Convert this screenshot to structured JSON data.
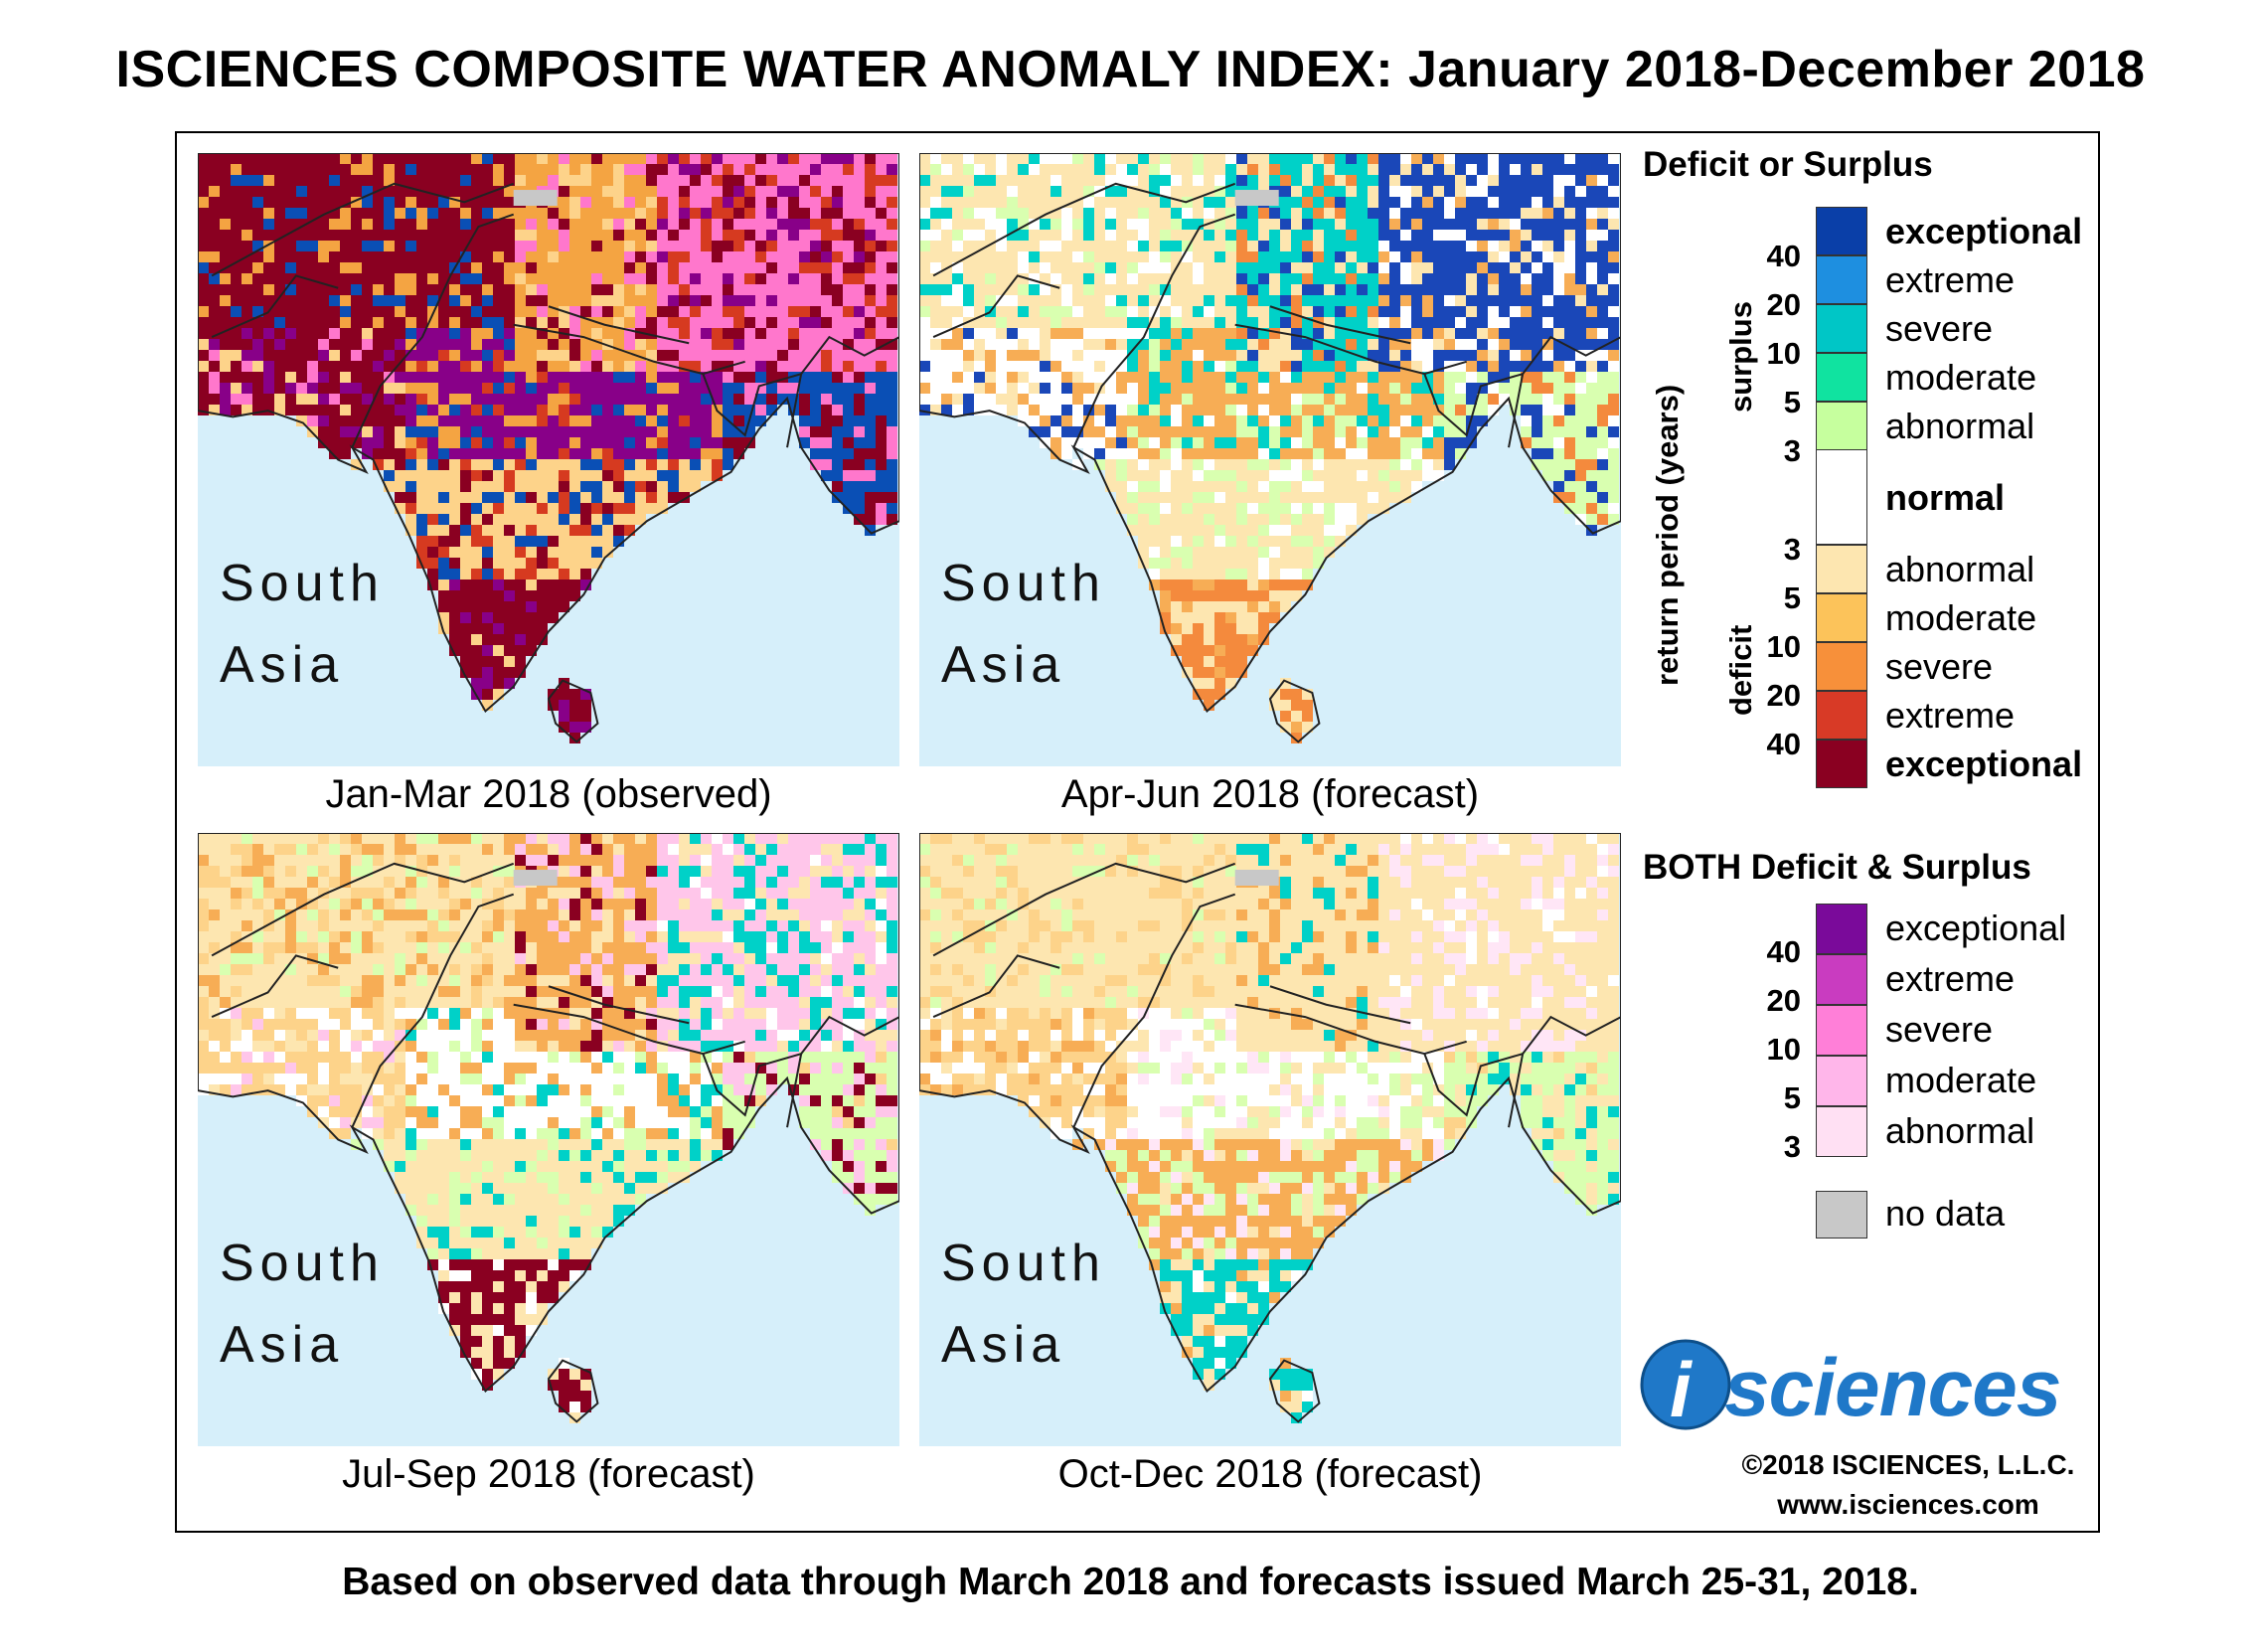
{
  "title": "ISCIENCES COMPOSITE WATER ANOMALY INDEX: January 2018-December 2018",
  "footer": "Based on observed data through March 2018 and forecasts issued March 25-31, 2018.",
  "colors": {
    "water": "#d6effa",
    "border": "#222222",
    "nodata": "#c8c8c8"
  },
  "panels": [
    {
      "region_line1": "South",
      "region_line2": "Asia",
      "caption": "Jan-Mar 2018 (observed)",
      "palette": [
        "#8a0021",
        "#8a0021",
        "#880088",
        "#f4a442",
        "#fdd38a",
        "#0a4fb5",
        "#ff77cc",
        "#d63a20",
        "#8a0021"
      ]
    },
    {
      "region_line1": "South",
      "region_line2": "Asia",
      "caption": "Apr-Jun 2018 (forecast)",
      "palette": [
        "#fde6b0",
        "#ffffff",
        "#f7ad55",
        "#00d1c8",
        "#fde6b0",
        "#d9ffb0",
        "#1a47b8",
        "#ffffff",
        "#f48a3d"
      ]
    },
    {
      "region_line1": "South",
      "region_line2": "Asia",
      "caption": "Jul-Sep 2018 (forecast)",
      "palette": [
        "#fde6b0",
        "#fdd38a",
        "#ffffff",
        "#f7ad55",
        "#fde6b0",
        "#d9ffb0",
        "#ffc6ea",
        "#00d1c8",
        "#8a0021"
      ]
    },
    {
      "region_line1": "South",
      "region_line2": "Asia",
      "caption": "Oct-Dec 2018 (forecast)",
      "palette": [
        "#fde6b0",
        "#fdd38a",
        "#ffffff",
        "#fde6b0",
        "#f7ad55",
        "#d9ffb0",
        "#fde6b0",
        "#ffe6f6",
        "#00d1c8"
      ]
    }
  ],
  "legend": {
    "title1": "Deficit or Surplus",
    "axis_label": "return period (years)",
    "surplus_label": "surplus",
    "deficit_label": "deficit",
    "surplus": [
      {
        "label": "exceptional",
        "color": "#0a3fa8",
        "bold": true
      },
      {
        "label": "extreme",
        "color": "#1e8fe0"
      },
      {
        "label": "severe",
        "color": "#00c6c6"
      },
      {
        "label": "moderate",
        "color": "#10e3a0"
      },
      {
        "label": "abnormal",
        "color": "#c6ff9e"
      }
    ],
    "normal": {
      "label": "normal",
      "color": "#ffffff"
    },
    "deficit": [
      {
        "label": "abnormal",
        "color": "#fde6b0"
      },
      {
        "label": "moderate",
        "color": "#fcc35a"
      },
      {
        "label": "severe",
        "color": "#f7903a"
      },
      {
        "label": "extreme",
        "color": "#d83a26"
      },
      {
        "label": "exceptional",
        "color": "#8a0021",
        "bold": true
      }
    ],
    "surplus_ticks": [
      "40",
      "20",
      "10",
      "5",
      "3"
    ],
    "deficit_ticks": [
      "3",
      "5",
      "10",
      "20",
      "40"
    ],
    "title2": "BOTH Deficit & Surplus",
    "both": [
      {
        "label": "exceptional",
        "color": "#7a0a9a"
      },
      {
        "label": "extreme",
        "color": "#c93cc0"
      },
      {
        "label": "severe",
        "color": "#ff7fd8"
      },
      {
        "label": "moderate",
        "color": "#ffb6ea"
      },
      {
        "label": "abnormal",
        "color": "#ffe0f3"
      }
    ],
    "both_ticks": [
      "40",
      "20",
      "10",
      "5",
      "3"
    ],
    "nodata": {
      "label": "no data",
      "color": "#c8c8c8"
    }
  },
  "logo_text": "sciences",
  "logo_letter": "i",
  "copyright": "©2018 ISCIENCES, L.L.C.",
  "url": "www.isciences.com"
}
